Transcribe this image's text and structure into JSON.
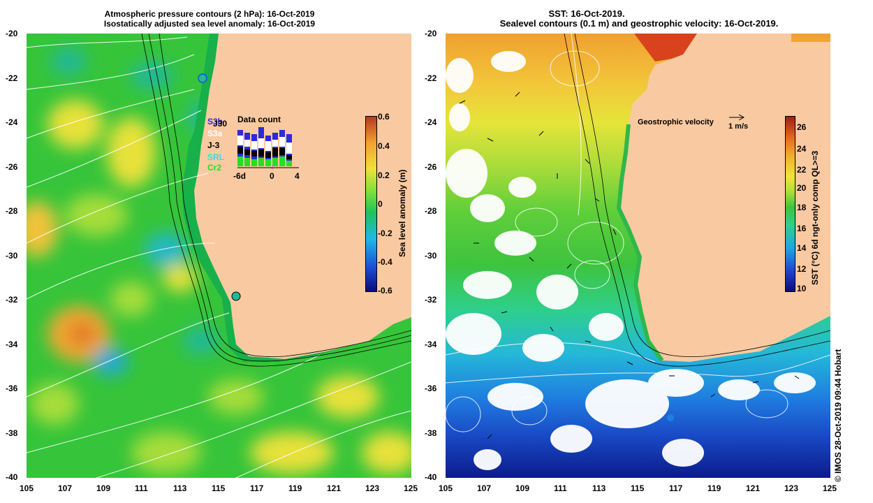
{
  "left_panel": {
    "title_line1": "Atmospheric pressure contours (2 hPa): 16-Oct-2019",
    "title_line2": "Isostatically adjusted sea level anomaly: 16-Oct-2019",
    "colorbar": {
      "label": "Sea level anomaly (m)",
      "ticks": [
        "0.6",
        "0.4",
        "0.2",
        "0",
        "-0.2",
        "-0.4",
        "-0.6"
      ],
      "colors": [
        "#0b0b7a",
        "#1d4fd6",
        "#21b7e8",
        "#1fc35a",
        "#7de03a",
        "#f0e03a",
        "#f2a132",
        "#b5391e"
      ]
    },
    "data_count": {
      "title": "Data count",
      "satellites": [
        "S3b",
        "J30",
        "S3a",
        "J-3",
        "SRL",
        "Cr2"
      ],
      "sat_colors": [
        "#2b2bdc",
        "#000000",
        "#ffffff",
        "#000000",
        "#33e0e0",
        "#22e022"
      ],
      "axis_labels": [
        "-6d",
        "0",
        "4"
      ]
    }
  },
  "right_panel": {
    "title_line1": "SST: 16-Oct-2019.",
    "title_line2": "Sealevel contours (0.1 m) and geostrophic velocity: 16-Oct-2019.",
    "velocity_label": "Geostrophic velocity",
    "velocity_scale": "1 m/s",
    "colorbar": {
      "label": "SST (°C) 6d ngt-only comp QL>=3",
      "ticks": [
        "26",
        "24",
        "22",
        "20",
        "18",
        "16",
        "14",
        "12",
        "10"
      ],
      "colors": [
        "#0b0b7a",
        "#1f45d0",
        "#1fa7e5",
        "#2fd08a",
        "#3ec33e",
        "#b6e03c",
        "#f2e33a",
        "#f3a92f",
        "#e06a22",
        "#9e1e12"
      ]
    }
  },
  "axes": {
    "y_ticks": [
      "-20",
      "-22",
      "-24",
      "-26",
      "-28",
      "-30",
      "-32",
      "-34",
      "-36",
      "-38",
      "-40"
    ],
    "x_ticks": [
      "105",
      "107",
      "109",
      "111",
      "113",
      "115",
      "117",
      "119",
      "121",
      "123",
      "125"
    ]
  },
  "credit": "© IMOS 28-Oct-2019 09:44 Hobart",
  "colors": {
    "land": "#f9c9a1",
    "ocean_green": "#36c43a",
    "coast_band": "#18b04a"
  }
}
